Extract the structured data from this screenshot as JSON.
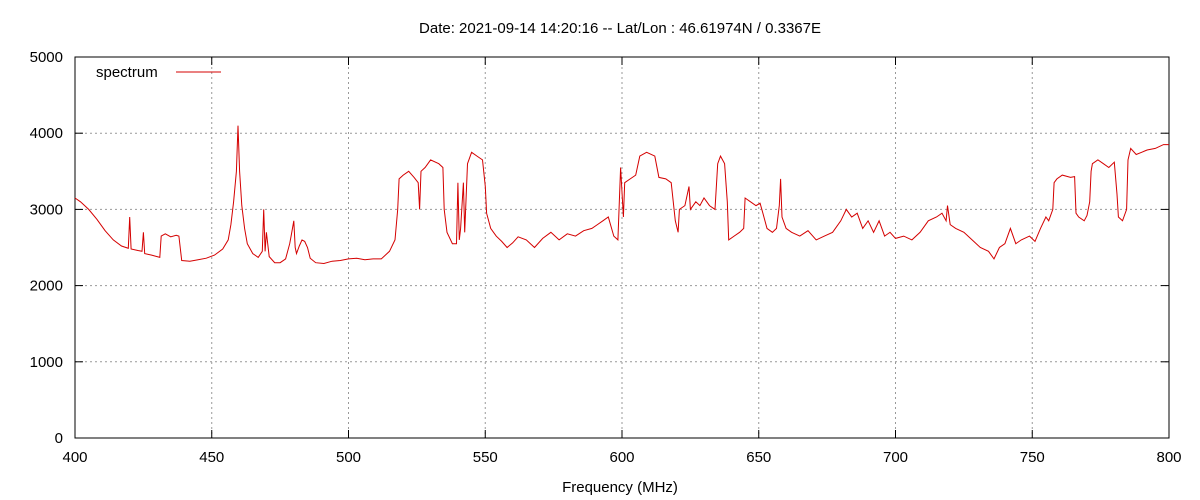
{
  "chart_data": {
    "type": "line",
    "title": "Date: 2021-09-14 14:20:16  --  Lat/Lon : 46.61974N / 0.3367E",
    "xlabel": "Frequency (MHz)",
    "ylabel": "",
    "xlim": [
      400,
      800
    ],
    "ylim": [
      0,
      5000
    ],
    "xticks": [
      400,
      450,
      500,
      550,
      600,
      650,
      700,
      750,
      800
    ],
    "yticks": [
      0,
      1000,
      2000,
      3000,
      4000,
      5000
    ],
    "grid": true,
    "legend_position": "top-left",
    "series": [
      {
        "name": "spectrum",
        "color": "#d40000",
        "points": [
          [
            400,
            3150
          ],
          [
            402,
            3100
          ],
          [
            405,
            3000
          ],
          [
            408,
            2870
          ],
          [
            411,
            2720
          ],
          [
            414,
            2600
          ],
          [
            417,
            2520
          ],
          [
            419.5,
            2490
          ],
          [
            420,
            2900
          ],
          [
            420.5,
            2480
          ],
          [
            423,
            2460
          ],
          [
            424.5,
            2450
          ],
          [
            425,
            2700
          ],
          [
            425.5,
            2420
          ],
          [
            428,
            2400
          ],
          [
            430,
            2380
          ],
          [
            431,
            2370
          ],
          [
            431.5,
            2650
          ],
          [
            433,
            2680
          ],
          [
            435,
            2640
          ],
          [
            437,
            2660
          ],
          [
            438,
            2650
          ],
          [
            439,
            2330
          ],
          [
            442,
            2320
          ],
          [
            445,
            2340
          ],
          [
            448,
            2360
          ],
          [
            451,
            2400
          ],
          [
            454,
            2480
          ],
          [
            456,
            2600
          ],
          [
            457,
            2800
          ],
          [
            458,
            3100
          ],
          [
            459,
            3500
          ],
          [
            459.6,
            4100
          ],
          [
            460.2,
            3500
          ],
          [
            461,
            3050
          ],
          [
            462,
            2750
          ],
          [
            463,
            2550
          ],
          [
            465,
            2420
          ],
          [
            467,
            2370
          ],
          [
            468.5,
            2450
          ],
          [
            469,
            3000
          ],
          [
            469.5,
            2450
          ],
          [
            470,
            2700
          ],
          [
            471,
            2380
          ],
          [
            473,
            2300
          ],
          [
            475,
            2300
          ],
          [
            477,
            2350
          ],
          [
            478.5,
            2550
          ],
          [
            479,
            2650
          ],
          [
            480,
            2850
          ],
          [
            480.5,
            2500
          ],
          [
            481,
            2420
          ],
          [
            482,
            2520
          ],
          [
            483,
            2600
          ],
          [
            484,
            2580
          ],
          [
            485,
            2500
          ],
          [
            486,
            2360
          ],
          [
            488,
            2300
          ],
          [
            491,
            2290
          ],
          [
            494,
            2320
          ],
          [
            497,
            2330
          ],
          [
            500,
            2350
          ],
          [
            503,
            2360
          ],
          [
            506,
            2340
          ],
          [
            509,
            2350
          ],
          [
            512,
            2350
          ],
          [
            515,
            2450
          ],
          [
            517,
            2600
          ],
          [
            518,
            3000
          ],
          [
            518.5,
            3400
          ],
          [
            520,
            3450
          ],
          [
            522,
            3500
          ],
          [
            524,
            3420
          ],
          [
            525.5,
            3350
          ],
          [
            526,
            3000
          ],
          [
            526.5,
            3500
          ],
          [
            528,
            3550
          ],
          [
            530,
            3650
          ],
          [
            533,
            3600
          ],
          [
            534.5,
            3550
          ],
          [
            535,
            3000
          ],
          [
            536,
            2700
          ],
          [
            538,
            2550
          ],
          [
            539.5,
            2550
          ],
          [
            540,
            3350
          ],
          [
            540.5,
            2600
          ],
          [
            541,
            2750
          ],
          [
            542,
            3350
          ],
          [
            542.5,
            2700
          ],
          [
            543.5,
            3600
          ],
          [
            545,
            3750
          ],
          [
            547,
            3700
          ],
          [
            549,
            3650
          ],
          [
            550,
            3300
          ],
          [
            550.5,
            2950
          ],
          [
            552,
            2750
          ],
          [
            554,
            2650
          ],
          [
            556,
            2580
          ],
          [
            558,
            2500
          ],
          [
            560,
            2560
          ],
          [
            562,
            2640
          ],
          [
            565,
            2600
          ],
          [
            568,
            2500
          ],
          [
            571,
            2620
          ],
          [
            574,
            2700
          ],
          [
            577,
            2600
          ],
          [
            580,
            2680
          ],
          [
            583,
            2650
          ],
          [
            586,
            2720
          ],
          [
            589,
            2750
          ],
          [
            591,
            2800
          ],
          [
            593,
            2850
          ],
          [
            595,
            2900
          ],
          [
            597,
            2650
          ],
          [
            598.5,
            2600
          ],
          [
            599.5,
            3550
          ],
          [
            600.5,
            2900
          ],
          [
            601,
            3350
          ],
          [
            603,
            3400
          ],
          [
            605,
            3450
          ],
          [
            606.5,
            3700
          ],
          [
            609,
            3750
          ],
          [
            612,
            3700
          ],
          [
            613.5,
            3420
          ],
          [
            616,
            3400
          ],
          [
            618,
            3350
          ],
          [
            619.5,
            2850
          ],
          [
            620.5,
            2700
          ],
          [
            621,
            3000
          ],
          [
            623,
            3050
          ],
          [
            624.5,
            3300
          ],
          [
            625,
            3000
          ],
          [
            627,
            3100
          ],
          [
            628.5,
            3050
          ],
          [
            630,
            3150
          ],
          [
            632,
            3050
          ],
          [
            634,
            3000
          ],
          [
            635,
            3600
          ],
          [
            636,
            3700
          ],
          [
            637.5,
            3600
          ],
          [
            638.5,
            3100
          ],
          [
            639,
            2600
          ],
          [
            641,
            2650
          ],
          [
            643,
            2700
          ],
          [
            644.5,
            2750
          ],
          [
            645,
            3150
          ],
          [
            647,
            3100
          ],
          [
            649,
            3050
          ],
          [
            650.5,
            3080
          ],
          [
            651.5,
            2950
          ],
          [
            653,
            2750
          ],
          [
            655,
            2700
          ],
          [
            656.5,
            2750
          ],
          [
            657.5,
            3050
          ],
          [
            658,
            3400
          ],
          [
            658.5,
            2900
          ],
          [
            660,
            2750
          ],
          [
            662,
            2700
          ],
          [
            665,
            2650
          ],
          [
            668,
            2720
          ],
          [
            671,
            2600
          ],
          [
            674,
            2650
          ],
          [
            677,
            2700
          ],
          [
            680,
            2850
          ],
          [
            682,
            3000
          ],
          [
            684,
            2900
          ],
          [
            686,
            2950
          ],
          [
            688,
            2750
          ],
          [
            690,
            2850
          ],
          [
            692,
            2700
          ],
          [
            694,
            2850
          ],
          [
            696,
            2650
          ],
          [
            698,
            2700
          ],
          [
            700,
            2620
          ],
          [
            703,
            2650
          ],
          [
            706,
            2600
          ],
          [
            709,
            2700
          ],
          [
            712,
            2850
          ],
          [
            715,
            2900
          ],
          [
            717,
            2950
          ],
          [
            718.5,
            2850
          ],
          [
            719,
            3050
          ],
          [
            720,
            2800
          ],
          [
            722,
            2750
          ],
          [
            725,
            2700
          ],
          [
            728,
            2600
          ],
          [
            731,
            2500
          ],
          [
            734,
            2450
          ],
          [
            736,
            2350
          ],
          [
            738,
            2500
          ],
          [
            740,
            2550
          ],
          [
            742,
            2750
          ],
          [
            744,
            2550
          ],
          [
            746,
            2600
          ],
          [
            749,
            2650
          ],
          [
            751,
            2580
          ],
          [
            753,
            2750
          ],
          [
            755,
            2900
          ],
          [
            756,
            2850
          ],
          [
            757.5,
            3000
          ],
          [
            758,
            3350
          ],
          [
            759,
            3400
          ],
          [
            761,
            3450
          ],
          [
            764,
            3420
          ],
          [
            765.5,
            3430
          ],
          [
            766,
            2950
          ],
          [
            767,
            2900
          ],
          [
            769,
            2850
          ],
          [
            770,
            2920
          ],
          [
            771,
            3100
          ],
          [
            771.5,
            3500
          ],
          [
            772,
            3600
          ],
          [
            774,
            3650
          ],
          [
            776,
            3600
          ],
          [
            778,
            3550
          ],
          [
            780,
            3620
          ],
          [
            781,
            3200
          ],
          [
            781.5,
            2900
          ],
          [
            783,
            2850
          ],
          [
            784.5,
            3000
          ],
          [
            785,
            3650
          ],
          [
            786,
            3800
          ],
          [
            788,
            3720
          ],
          [
            790,
            3750
          ],
          [
            792,
            3780
          ],
          [
            795,
            3800
          ],
          [
            798,
            3850
          ],
          [
            800,
            3850
          ]
        ]
      }
    ]
  }
}
